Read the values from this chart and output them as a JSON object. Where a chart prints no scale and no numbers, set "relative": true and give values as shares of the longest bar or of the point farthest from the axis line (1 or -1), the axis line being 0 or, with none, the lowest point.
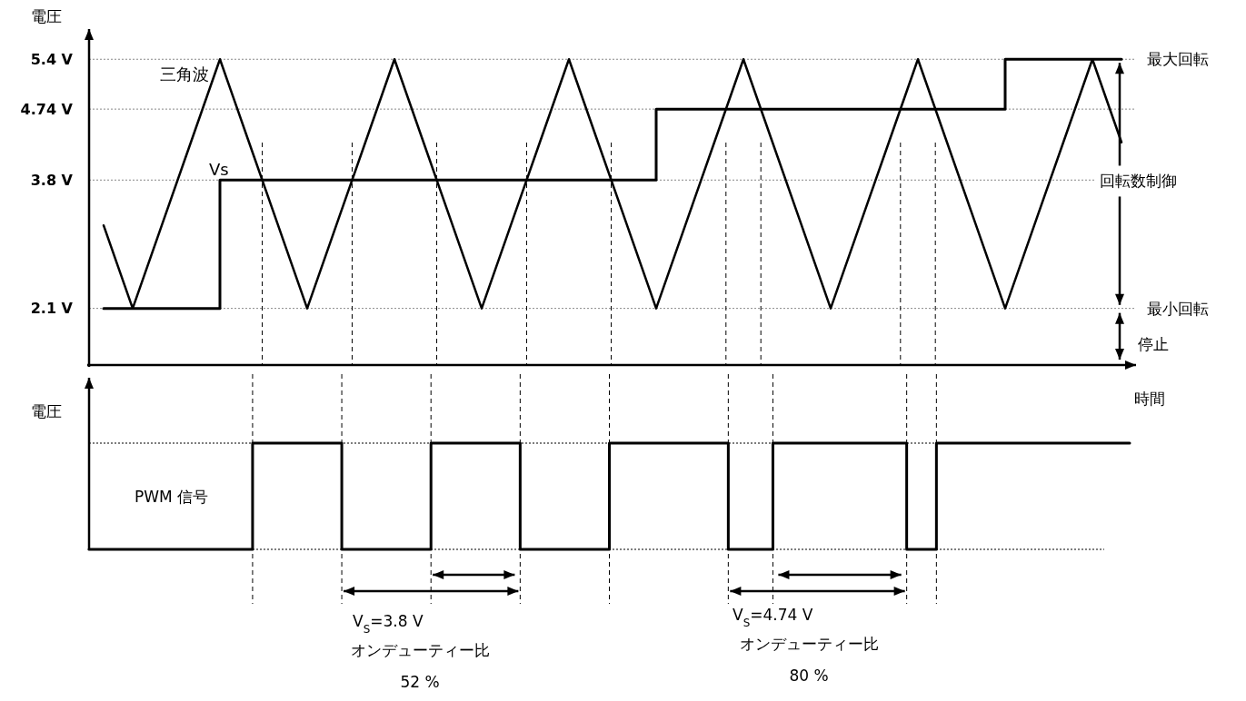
{
  "chart_data": [
    {
      "type": "line",
      "ylabel": "電圧",
      "ylim": [
        1.35,
        5.8
      ],
      "categories": [
        null,
        null,
        null,
        null,
        null,
        null,
        null,
        null,
        null,
        null,
        null,
        null,
        null,
        null,
        null,
        null,
        null,
        null,
        null,
        null,
        null,
        null,
        null,
        null,
        null,
        null,
        null,
        null,
        null,
        null,
        null,
        null,
        null,
        null,
        null,
        null
      ],
      "yticks": [
        {
          "value": 2.1,
          "label": "2.1 V"
        },
        {
          "value": 3.8,
          "label": "3.8 V"
        },
        {
          "value": 4.74,
          "label": "4.74 V"
        },
        {
          "value": 5.4,
          "label": "5.4 V"
        }
      ],
      "grid": "y",
      "legend": false,
      "tick_labels": "y",
      "series": [
        {
          "name": "Vs",
          "type": "step",
          "color": "#000000",
          "values": [
            2.1,
            2.1,
            2.1,
            2.1,
            3.8,
            3.8,
            3.8,
            3.8,
            3.8,
            3.8,
            3.8,
            3.8,
            3.8,
            3.8,
            3.8,
            3.8,
            3.8,
            3.8,
            3.8,
            4.74,
            4.74,
            4.74,
            4.74,
            4.74,
            4.74,
            4.74,
            4.74,
            4.74,
            4.74,
            4.74,
            4.74,
            5.4,
            5.4,
            5.4,
            5.4,
            5.4
          ]
        },
        {
          "name": "三角波",
          "type": "line",
          "color": "#000000",
          "values": [
            3.2,
            2.1,
            3.2,
            4.3,
            5.4,
            4.3,
            3.2,
            2.1,
            3.2,
            4.3,
            5.4,
            4.3,
            3.2,
            2.1,
            3.2,
            4.3,
            5.4,
            4.3,
            3.2,
            2.1,
            3.2,
            4.3,
            5.4,
            4.3,
            3.2,
            2.1,
            3.2,
            4.3,
            5.4,
            4.3,
            3.2,
            2.1,
            3.2,
            4.3,
            5.4,
            4.3
          ]
        }
      ],
      "annotations": [
        "最大回転",
        "最小回転",
        "回転数制御",
        "停止"
      ]
    },
    {
      "type": "step",
      "relative": true,
      "ylabel": "電圧",
      "xlabel": "時間",
      "legend": false,
      "tick_labels": false,
      "grid": true,
      "categories": [
        null,
        null,
        null,
        null,
        null,
        null,
        null,
        null,
        null,
        null,
        null,
        null,
        null,
        null,
        null,
        null,
        null,
        null,
        null,
        null,
        null,
        null,
        null,
        null,
        null,
        null,
        null,
        null,
        null,
        null,
        null,
        null,
        null,
        null,
        null,
        null,
        null,
        null,
        null,
        null,
        null,
        null,
        null,
        null,
        null,
        null,
        null,
        null,
        null,
        null,
        null,
        null,
        null,
        null,
        null,
        null,
        null,
        null,
        null,
        null,
        null,
        null,
        null,
        null,
        null,
        null,
        null,
        null,
        null,
        null,
        null
      ],
      "series": [
        {
          "name": "PWM 信号",
          "color": "#000000",
          "values": [
            0,
            0,
            0,
            0,
            0,
            0,
            0,
            0,
            0,
            0,
            0,
            1,
            1,
            1,
            1,
            1,
            1,
            0,
            0,
            0,
            0,
            0,
            0,
            1,
            1,
            1,
            1,
            1,
            1,
            0,
            0,
            0,
            0,
            0,
            0,
            1,
            1,
            1,
            1,
            1,
            1,
            1,
            1,
            0,
            0,
            0,
            1,
            1,
            1,
            1,
            1,
            1,
            1,
            1,
            1,
            0,
            0,
            1,
            1,
            1,
            1,
            1,
            1,
            1,
            1,
            1,
            1,
            1,
            1,
            1,
            1
          ]
        }
      ],
      "annotations": [
        "V$_{S}$=3.8 V",
        "オンデューティー比",
        "52 %",
        "V$_{S}$=4.74 V",
        "オンデューティー比",
        "80 %"
      ]
    }
  ]
}
